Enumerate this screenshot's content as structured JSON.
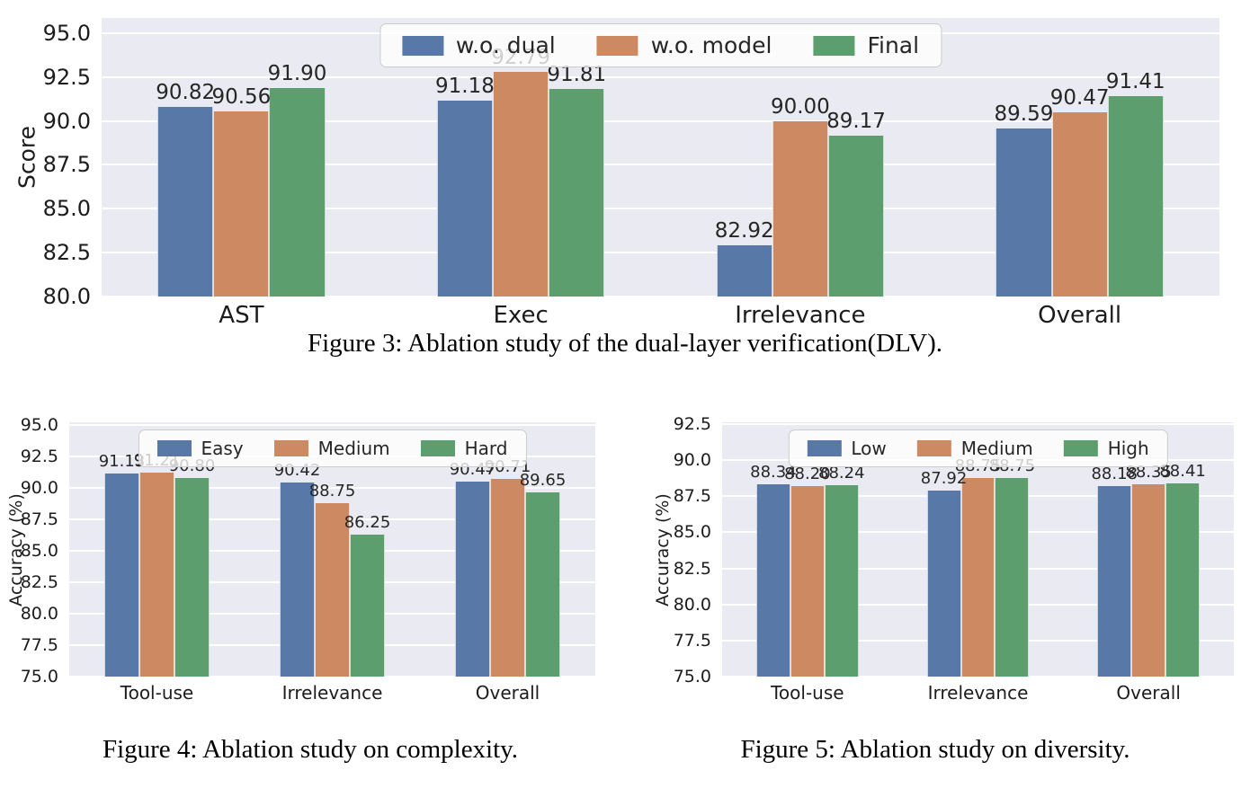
{
  "colors": {
    "blue": "#5878a8",
    "orange": "#cd8a62",
    "green": "#5c9e6e",
    "plot_background": "#eaeaf2",
    "grid": "#ffffff",
    "text": "#262626"
  },
  "chart_data": [
    {
      "id": "fig3",
      "type": "bar",
      "title": "",
      "xlabel": "",
      "ylabel": "Score",
      "ylim": [
        80,
        95.87
      ],
      "yticks": [
        "80.0",
        "82.5",
        "85.0",
        "87.5",
        "90.0",
        "92.5",
        "95.0"
      ],
      "grid": true,
      "legend_position": "upper center",
      "categories": [
        "AST",
        "Exec",
        "Irrelevance",
        "Overall"
      ],
      "series": [
        {
          "name": "w.o. dual",
          "color": "blue",
          "values": [
            90.82,
            91.18,
            82.92,
            89.59
          ]
        },
        {
          "name": "w.o. model",
          "color": "orange",
          "values": [
            90.56,
            92.79,
            90.0,
            90.47
          ]
        },
        {
          "name": "Final",
          "color": "green",
          "values": [
            91.9,
            91.81,
            89.17,
            91.41
          ]
        }
      ],
      "caption": "Figure 3: Ablation study of the dual-layer verification(DLV)."
    },
    {
      "id": "fig4",
      "type": "bar",
      "title": "",
      "xlabel": "",
      "ylabel": "Accuracy (%)",
      "ylim": [
        75,
        95.2
      ],
      "yticks": [
        "75.0",
        "77.5",
        "80.0",
        "82.5",
        "85.0",
        "87.5",
        "90.0",
        "92.5",
        "95.0"
      ],
      "grid": true,
      "legend_position": "upper center",
      "categories": [
        "Tool-use",
        "Irrelevance",
        "Overall"
      ],
      "series": [
        {
          "name": "Easy",
          "color": "blue",
          "values": [
            91.13,
            90.42,
            90.47
          ]
        },
        {
          "name": "Medium",
          "color": "orange",
          "values": [
            91.21,
            88.75,
            90.71
          ]
        },
        {
          "name": "Hard",
          "color": "green",
          "values": [
            90.8,
            86.25,
            89.65
          ]
        }
      ],
      "caption": "Figure 4: Ablation study on complexity."
    },
    {
      "id": "fig5",
      "type": "bar",
      "title": "",
      "xlabel": "",
      "ylabel": "Accuracy (%)",
      "ylim": [
        75,
        92.63
      ],
      "yticks": [
        "75.0",
        "77.5",
        "80.0",
        "82.5",
        "85.0",
        "87.5",
        "90.0",
        "92.5"
      ],
      "grid": true,
      "legend_position": "upper center",
      "categories": [
        "Tool-use",
        "Irrelevance",
        "Overall"
      ],
      "series": [
        {
          "name": "Low",
          "color": "blue",
          "values": [
            88.34,
            87.92,
            88.18
          ]
        },
        {
          "name": "Medium",
          "color": "orange",
          "values": [
            88.2,
            88.75,
            88.35
          ]
        },
        {
          "name": "High",
          "color": "green",
          "values": [
            88.24,
            88.75,
            88.41
          ]
        }
      ],
      "caption": "Figure 5: Ablation study on diversity."
    }
  ]
}
